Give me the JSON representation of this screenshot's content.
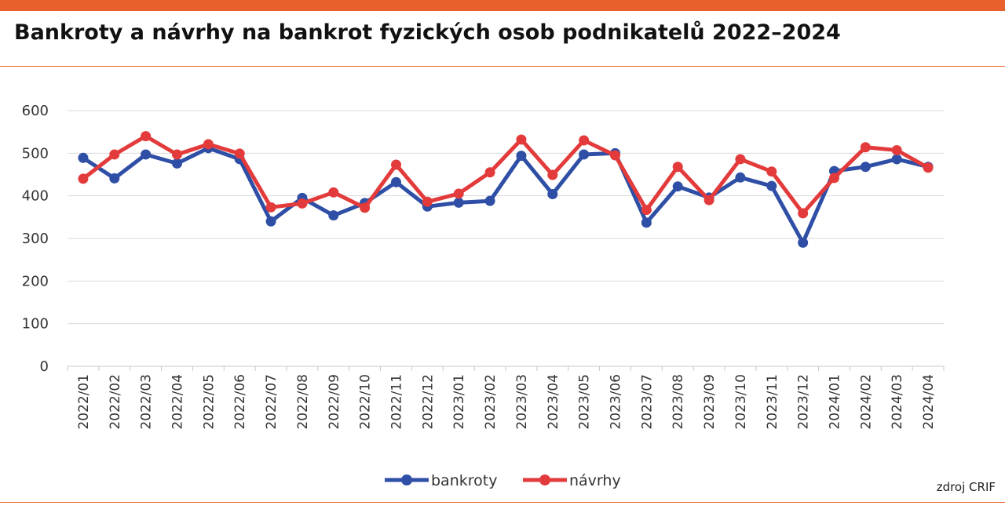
{
  "title": "Bankroty a návrhy na bankrot fyzických osob podnikatelů 2022–2024",
  "source": "zdroj CRIF",
  "colors": {
    "accent": "#e8602b",
    "bankroty": "#2e4fa5",
    "navrhy": "#e33b3b",
    "grid": "#d9d9d9"
  },
  "chart_data": {
    "type": "line",
    "categories": [
      "2022/01",
      "2022/02",
      "2022/03",
      "2022/04",
      "2022/05",
      "2022/06",
      "2022/07",
      "2022/08",
      "2022/09",
      "2022/10",
      "2022/11",
      "2022/12",
      "2023/01",
      "2023/02",
      "2023/03",
      "2023/04",
      "2023/05",
      "2023/06",
      "2023/07",
      "2023/08",
      "2023/09",
      "2023/10",
      "2023/11",
      "2023/12",
      "2024/01",
      "2024/02",
      "2024/03",
      "2024/04"
    ],
    "series": [
      {
        "name": "bankroty",
        "values": [
          489,
          441,
          497,
          476,
          512,
          486,
          340,
          395,
          354,
          383,
          432,
          375,
          384,
          388,
          494,
          404,
          497,
          500,
          337,
          422,
          396,
          443,
          423,
          290,
          458,
          468,
          486,
          468
        ]
      },
      {
        "name": "návrhy",
        "values": [
          440,
          497,
          540,
          497,
          521,
          499,
          373,
          382,
          408,
          372,
          473,
          386,
          405,
          455,
          532,
          449,
          530,
          495,
          367,
          468,
          390,
          486,
          457,
          359,
          442,
          514,
          507,
          466
        ]
      }
    ],
    "ylim": [
      0,
      600
    ],
    "yticks": [
      0,
      100,
      200,
      300,
      400,
      500,
      600
    ],
    "grid": true,
    "legend": "bottom"
  }
}
